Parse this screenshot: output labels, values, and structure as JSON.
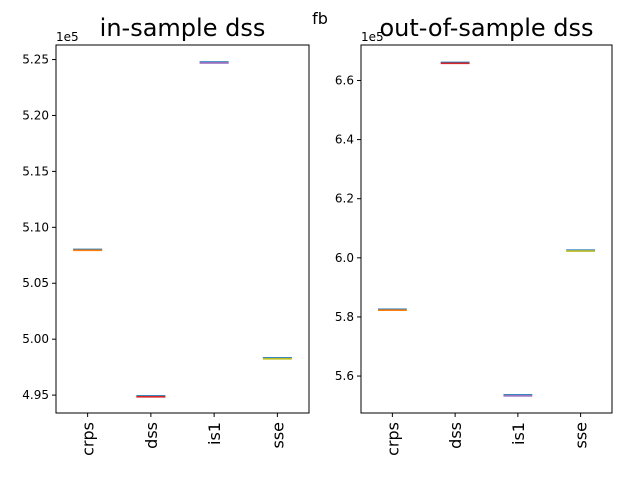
{
  "figure": {
    "suptitle": "fb"
  },
  "chart_data": [
    {
      "type": "box",
      "title": "in-sample dss",
      "categories": [
        "crps",
        "dss",
        "is1",
        "sse"
      ],
      "values": [
        508000,
        494900,
        524750,
        498300
      ],
      "ylim": [
        493400,
        526300
      ],
      "yticks": [
        495000,
        500000,
        505000,
        510000,
        515000,
        520000,
        525000
      ],
      "ytick_labels": [
        "4.95",
        "5.00",
        "5.05",
        "5.10",
        "5.15",
        "5.20",
        "5.25"
      ],
      "offset_label": "1e5",
      "colors": [
        "#ff7f0e",
        "#d62728",
        "#9467bd",
        "#bcbd22"
      ],
      "xlabel": "",
      "ylabel": "",
      "grid": false
    },
    {
      "type": "box",
      "title": "out-of-sample dss",
      "categories": [
        "crps",
        "dss",
        "is1",
        "sse"
      ],
      "values": [
        582500,
        666000,
        553500,
        602500
      ],
      "ylim": [
        547500,
        672000
      ],
      "yticks": [
        560000,
        580000,
        600000,
        620000,
        640000,
        660000
      ],
      "ytick_labels": [
        "5.6",
        "5.8",
        "6.0",
        "6.2",
        "6.4",
        "6.6"
      ],
      "offset_label": "1e5",
      "colors": [
        "#ff7f0e",
        "#d62728",
        "#9467bd",
        "#bcbd22"
      ],
      "xlabel": "",
      "ylabel": "",
      "grid": false
    }
  ]
}
